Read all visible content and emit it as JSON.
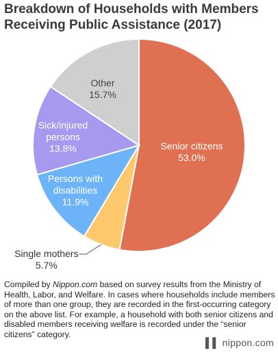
{
  "chart_data": {
    "type": "pie",
    "title": "Breakdown of Households with Members Receiving Public Assistance (2017)",
    "categories": [
      "Senior citizens",
      "Single mothers",
      "Persons with disabilities",
      "Sick/injured persons",
      "Other"
    ],
    "values": [
      53.0,
      5.7,
      11.9,
      13.8,
      15.7
    ],
    "value_labels": [
      "53.0%",
      "5.7%",
      "11.9%",
      "13.8%",
      "15.7%"
    ],
    "colors": [
      "#e07052",
      "#fdc96c",
      "#6cb4f7",
      "#a899f0",
      "#cfcfcf"
    ]
  },
  "note": [
    "Compiled by ",
    "Nippon.com",
    " based on survey results from the Ministry of Health, Labor, and Welfare. In cases where households include members of more than one group, they are recorded in the first-occurring category on the above list. For example, a household with both senior citizens and disabled members receiving welfare is recorded under the “senior citizens” category."
  ],
  "logo": "nippon.com"
}
